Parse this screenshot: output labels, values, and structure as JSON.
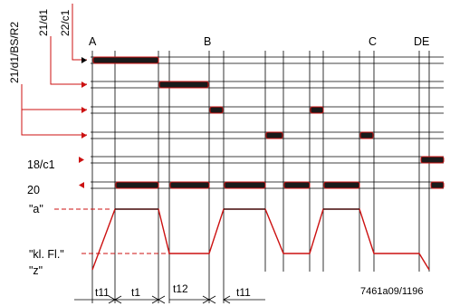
{
  "colors": {
    "ink": "#000000",
    "accent": "#cc1111",
    "bar_fill": "#1a1a1a",
    "bar_border": "#cc1111"
  },
  "rotated_labels": {
    "l1": "21/d1/BS/R2",
    "l2": "21/d1",
    "l3": "22/c1"
  },
  "row_labels": {
    "r18": "18/c1",
    "r20": "20"
  },
  "points": {
    "A": "A",
    "B": "B",
    "C": "C",
    "DE": "DE"
  },
  "position_labels": {
    "a": "\"a\"",
    "kl": "\"kl. Fl.\"",
    "z": "\"z\""
  },
  "time_labels": {
    "t11a": "t11",
    "t1": "t1",
    "t12": "t12",
    "t11b": "t11"
  },
  "reference": "7461a09/1196"
}
